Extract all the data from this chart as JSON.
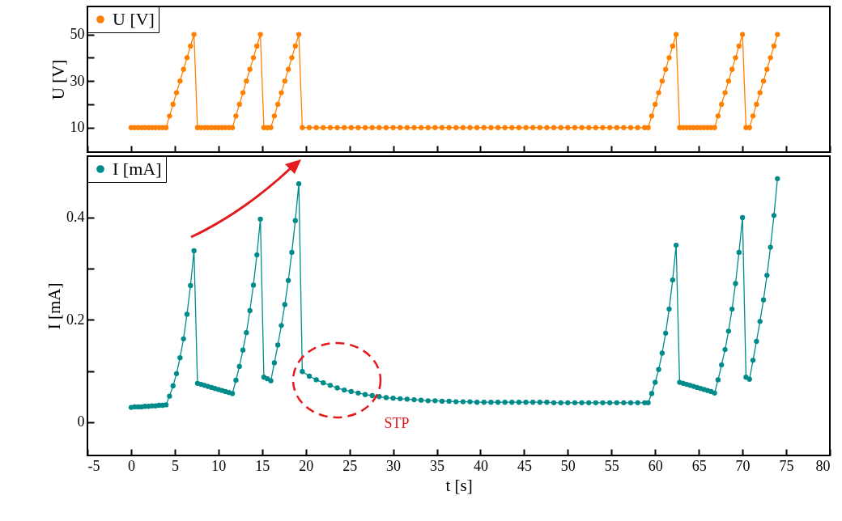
{
  "chart_data": [
    {
      "type": "line",
      "ylabel": "U [V]",
      "legend": "top left",
      "marker": "circle",
      "tick_labels": "y",
      "xlim": [
        -5,
        80
      ],
      "xticks": [
        -5,
        0,
        5,
        10,
        15,
        20,
        25,
        30,
        35,
        40,
        45,
        50,
        55,
        60,
        65,
        70,
        75,
        80
      ],
      "ylim": [
        -0.5,
        62
      ],
      "yticks": [
        10,
        {
          "value": 20,
          "label": null
        },
        30,
        {
          "value": 40,
          "label": null
        },
        50
      ],
      "x": [
        0,
        0.4,
        0.8,
        1.2,
        1.6,
        2,
        2.4,
        2.8,
        3.2,
        3.6,
        4,
        4.4,
        4.8,
        5.2,
        5.6,
        6,
        6.4,
        6.8,
        7.2,
        7.6,
        8,
        8.4,
        8.8,
        9.2,
        9.6,
        10,
        10.4,
        10.8,
        11.2,
        11.6,
        12,
        12.4,
        12.8,
        13.2,
        13.6,
        14,
        14.4,
        14.8,
        15.2,
        15.6,
        16,
        16.4,
        16.8,
        17.2,
        17.6,
        18,
        18.4,
        18.8,
        19.2,
        19.6,
        20.4,
        21.2,
        22,
        22.8,
        23.6,
        24.4,
        25.2,
        26,
        26.8,
        27.6,
        28.4,
        29.2,
        30,
        30.8,
        31.6,
        32.4,
        33.2,
        34,
        34.8,
        35.6,
        36.4,
        37.2,
        38,
        38.8,
        39.6,
        40.4,
        41.2,
        42,
        42.8,
        43.6,
        44.4,
        45.2,
        46,
        46.8,
        47.6,
        48.4,
        49.2,
        50,
        50.8,
        51.6,
        52.4,
        53.2,
        54,
        54.8,
        55.6,
        56.4,
        57.2,
        58,
        58.8,
        59.2,
        59.6,
        60,
        60.4,
        60.8,
        61.2,
        61.6,
        62,
        62.4,
        62.8,
        63.2,
        63.6,
        64,
        64.4,
        64.8,
        65.2,
        65.6,
        66,
        66.4,
        66.8,
        67.2,
        67.6,
        68,
        68.4,
        68.8,
        69.2,
        69.6,
        70,
        70.4,
        70.8,
        71.2,
        71.6,
        72,
        72.4,
        72.8,
        73.2,
        73.6,
        74
      ],
      "series": [
        {
          "name": "U [V]",
          "color": "#ff8000",
          "values": [
            10,
            10,
            10,
            10,
            10,
            10,
            10,
            10,
            10,
            10,
            10,
            15,
            20,
            25,
            30,
            35,
            40,
            45,
            50,
            10,
            10,
            10,
            10,
            10,
            10,
            10,
            10,
            10,
            10,
            10,
            15,
            20,
            25,
            30,
            35,
            40,
            45,
            50,
            10,
            10,
            10,
            15,
            20,
            25,
            30,
            35,
            40,
            45,
            50,
            10,
            10,
            10,
            10,
            10,
            10,
            10,
            10,
            10,
            10,
            10,
            10,
            10,
            10,
            10,
            10,
            10,
            10,
            10,
            10,
            10,
            10,
            10,
            10,
            10,
            10,
            10,
            10,
            10,
            10,
            10,
            10,
            10,
            10,
            10,
            10,
            10,
            10,
            10,
            10,
            10,
            10,
            10,
            10,
            10,
            10,
            10,
            10,
            10,
            10,
            10,
            15,
            20,
            25,
            30,
            35,
            40,
            45,
            50,
            10,
            10,
            10,
            10,
            10,
            10,
            10,
            10,
            10,
            10,
            10,
            15,
            20,
            25,
            30,
            35,
            40,
            45,
            50,
            10,
            10,
            15,
            20,
            25,
            30,
            35,
            40,
            45,
            50
          ]
        }
      ]
    },
    {
      "type": "line",
      "ylabel": "I [mA]",
      "xlabel": "t [s]",
      "legend": "top left",
      "marker": "circle",
      "xlim": [
        -5,
        80
      ],
      "xticks": [
        -5,
        0,
        5,
        10,
        15,
        20,
        25,
        30,
        35,
        40,
        45,
        50,
        55,
        60,
        65,
        70,
        75,
        80
      ],
      "ylim": [
        -0.065,
        0.52
      ],
      "yticks": [
        0,
        {
          "value": 0.1,
          "label": null
        },
        0.2,
        {
          "value": 0.3,
          "label": null
        },
        0.4,
        {
          "value": 0.5,
          "label": null
        }
      ],
      "annotations": [
        "STP"
      ],
      "x": [
        0,
        0.4,
        0.8,
        1.2,
        1.6,
        2,
        2.4,
        2.8,
        3.2,
        3.6,
        4,
        4.4,
        4.8,
        5.2,
        5.6,
        6,
        6.4,
        6.8,
        7.2,
        7.6,
        8,
        8.4,
        8.8,
        9.2,
        9.6,
        10,
        10.4,
        10.8,
        11.2,
        11.6,
        12,
        12.4,
        12.8,
        13.2,
        13.6,
        14,
        14.4,
        14.8,
        15.2,
        15.6,
        16,
        16.4,
        16.8,
        17.2,
        17.6,
        18,
        18.4,
        18.8,
        19.2,
        19.6,
        20.4,
        21.2,
        22,
        22.8,
        23.6,
        24.4,
        25.2,
        26,
        26.8,
        27.6,
        28.4,
        29.2,
        30,
        30.8,
        31.6,
        32.4,
        33.2,
        34,
        34.8,
        35.6,
        36.4,
        37.2,
        38,
        38.8,
        39.6,
        40.4,
        41.2,
        42,
        42.8,
        43.6,
        44.4,
        45.2,
        46,
        46.8,
        47.6,
        48.4,
        49.2,
        50,
        50.8,
        51.6,
        52.4,
        53.2,
        54,
        54.8,
        55.6,
        56.4,
        57.2,
        58,
        58.8,
        59.2,
        59.6,
        60,
        60.4,
        60.8,
        61.2,
        61.6,
        62,
        62.4,
        62.8,
        63.2,
        63.6,
        64,
        64.4,
        64.8,
        65.2,
        65.6,
        66,
        66.4,
        66.8,
        67.2,
        67.6,
        68,
        68.4,
        68.8,
        69.2,
        69.6,
        70,
        70.4,
        70.8,
        71.2,
        71.6,
        72,
        72.4,
        72.8,
        73.2,
        73.6,
        74
      ],
      "series": [
        {
          "name": "I [mA]",
          "color": "#008b8b",
          "values": [
            0.029,
            0.03,
            0.03,
            0.03,
            0.031,
            0.031,
            0.032,
            0.032,
            0.033,
            0.033,
            0.034,
            0.051,
            0.071,
            0.095,
            0.126,
            0.163,
            0.211,
            0.267,
            0.335,
            0.076,
            0.074,
            0.072,
            0.07,
            0.068,
            0.066,
            0.064,
            0.062,
            0.06,
            0.058,
            0.056,
            0.082,
            0.109,
            0.141,
            0.175,
            0.218,
            0.268,
            0.327,
            0.397,
            0.088,
            0.085,
            0.081,
            0.116,
            0.151,
            0.189,
            0.23,
            0.277,
            0.332,
            0.394,
            0.466,
            0.099,
            0.09,
            0.083,
            0.077,
            0.072,
            0.067,
            0.063,
            0.06,
            0.057,
            0.054,
            0.052,
            0.05,
            0.048,
            0.047,
            0.046,
            0.045,
            0.044,
            0.043,
            0.042,
            0.042,
            0.041,
            0.041,
            0.04,
            0.04,
            0.04,
            0.039,
            0.039,
            0.039,
            0.039,
            0.039,
            0.039,
            0.039,
            0.039,
            0.039,
            0.039,
            0.039,
            0.038,
            0.038,
            0.038,
            0.038,
            0.038,
            0.038,
            0.038,
            0.038,
            0.038,
            0.038,
            0.038,
            0.038,
            0.038,
            0.038,
            0.038,
            0.056,
            0.078,
            0.103,
            0.135,
            0.174,
            0.221,
            0.278,
            0.346,
            0.078,
            0.076,
            0.074,
            0.072,
            0.07,
            0.068,
            0.066,
            0.064,
            0.062,
            0.06,
            0.057,
            0.083,
            0.112,
            0.142,
            0.178,
            0.221,
            0.271,
            0.332,
            0.4,
            0.088,
            0.084,
            0.121,
            0.158,
            0.197,
            0.239,
            0.287,
            0.342,
            0.404,
            0.476
          ]
        }
      ]
    }
  ]
}
